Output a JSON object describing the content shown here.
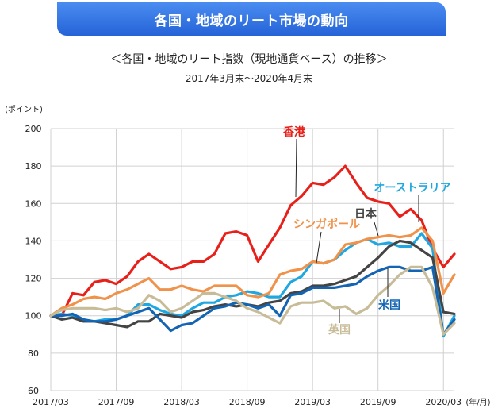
{
  "header": {
    "banner_title": "各国・地域のリート市場の動向",
    "subtitle": "＜各国・地域のリート指数（現地通貨ベース）の推移＞",
    "period": "2017年3月末～2020年4月末"
  },
  "chart_data": {
    "type": "line",
    "title": "",
    "ylabel": "(ポイント)",
    "xlabel": "(年/月)",
    "ylim": [
      60,
      200
    ],
    "yticks": [
      60,
      80,
      100,
      120,
      140,
      160,
      180,
      200
    ],
    "xticks": [
      "2017/03",
      "2017/09",
      "2018/03",
      "2018/09",
      "2019/03",
      "2019/09",
      "2020/03"
    ],
    "grid": true,
    "months": [
      "2017/03",
      "2017/04",
      "2017/05",
      "2017/06",
      "2017/07",
      "2017/08",
      "2017/09",
      "2017/10",
      "2017/11",
      "2017/12",
      "2018/01",
      "2018/02",
      "2018/03",
      "2018/04",
      "2018/05",
      "2018/06",
      "2018/07",
      "2018/08",
      "2018/09",
      "2018/10",
      "2018/11",
      "2018/12",
      "2019/01",
      "2019/02",
      "2019/03",
      "2019/04",
      "2019/05",
      "2019/06",
      "2019/07",
      "2019/08",
      "2019/09",
      "2019/10",
      "2019/11",
      "2019/12",
      "2020/01",
      "2020/02",
      "2020/03",
      "2020/04"
    ],
    "series": [
      {
        "name": "香港",
        "color": "#e8201a",
        "values": [
          100,
          100,
          112,
          111,
          118,
          119,
          117,
          121,
          129,
          133,
          129,
          125,
          126,
          129,
          129,
          133,
          144,
          145,
          143,
          129,
          138,
          147,
          159,
          164,
          171,
          170,
          174,
          180,
          171,
          163,
          161,
          160,
          153,
          157,
          151,
          136,
          126,
          133
        ]
      },
      {
        "name": "オーストラリア",
        "color": "#1ea7e0",
        "values": [
          100,
          101,
          100,
          97,
          97,
          98,
          98,
          100,
          106,
          106,
          103,
          101,
          100,
          104,
          107,
          107,
          110,
          111,
          113,
          112,
          110,
          110,
          118,
          121,
          129,
          128,
          130,
          135,
          139,
          141,
          138,
          139,
          137,
          137,
          144,
          136,
          89,
          100
        ]
      },
      {
        "name": "シンガポール",
        "color": "#f0924a",
        "values": [
          100,
          104,
          106,
          109,
          110,
          109,
          112,
          114,
          117,
          120,
          114,
          114,
          116,
          114,
          113,
          116,
          116,
          116,
          111,
          110,
          112,
          122,
          124,
          125,
          129,
          128,
          130,
          138,
          139,
          141,
          142,
          143,
          142,
          143,
          147,
          140,
          112,
          122
        ]
      },
      {
        "name": "日本",
        "color": "#444444",
        "values": [
          100,
          98,
          99,
          97,
          97,
          96,
          95,
          94,
          97,
          97,
          101,
          100,
          99,
          102,
          103,
          105,
          106,
          105,
          106,
          105,
          107,
          108,
          112,
          113,
          116,
          116,
          117,
          119,
          121,
          126,
          131,
          137,
          140,
          139,
          135,
          131,
          102,
          101
        ]
      },
      {
        "name": "米国",
        "color": "#1464b4",
        "values": [
          100,
          100,
          101,
          98,
          97,
          97,
          98,
          100,
          102,
          104,
          98,
          92,
          95,
          96,
          100,
          104,
          105,
          107,
          106,
          104,
          106,
          100,
          111,
          112,
          115,
          115,
          115,
          116,
          117,
          121,
          124,
          126,
          126,
          124,
          124,
          126,
          90,
          98
        ]
      },
      {
        "name": "英国",
        "color": "#c8bc98",
        "values": [
          100,
          103,
          104,
          104,
          104,
          103,
          104,
          102,
          104,
          111,
          108,
          102,
          104,
          108,
          112,
          112,
          110,
          108,
          104,
          102,
          99,
          96,
          105,
          107,
          107,
          108,
          104,
          105,
          101,
          104,
          111,
          116,
          122,
          126,
          126,
          115,
          90,
          96
        ]
      }
    ],
    "annotations": [
      "香港",
      "オーストラリア",
      "シンガポール",
      "日本",
      "米国",
      "英国"
    ]
  }
}
